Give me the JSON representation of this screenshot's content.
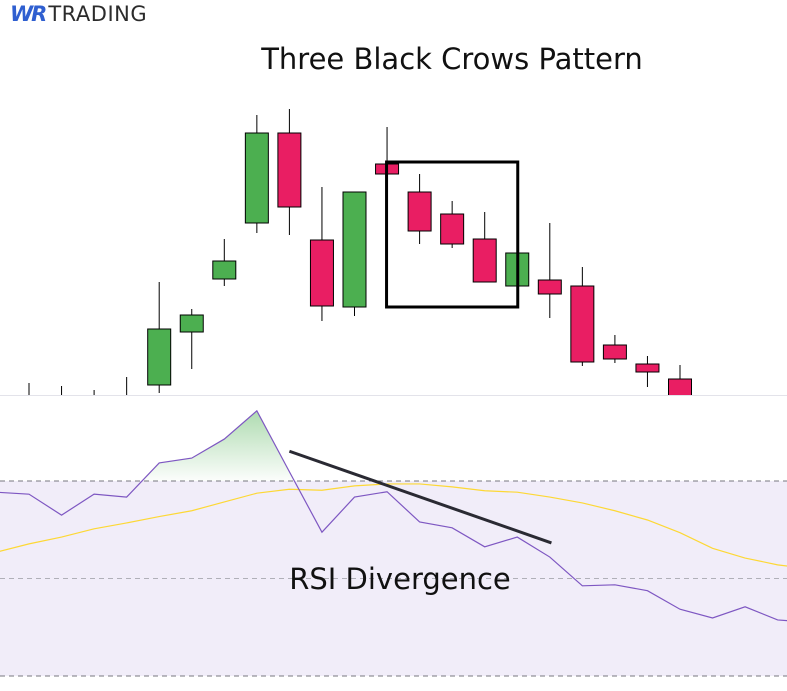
{
  "logo": {
    "mark": "WR",
    "word": "TRADING"
  },
  "chart_data": [
    {
      "type": "candlestick",
      "title": "Three Black Crows Pattern",
      "price_note": "no price axis shown; values in relative price units",
      "colors": {
        "up": "#4caf50",
        "down": "#e91e63",
        "outline": "#000000"
      },
      "candles": [
        {
          "bar": 2,
          "open": null,
          "high": 1.7,
          "low": -2,
          "close": null
        },
        {
          "bar": 3,
          "open": null,
          "high": 1.4,
          "low": -2,
          "close": null
        },
        {
          "bar": 4,
          "open": null,
          "high": 1.0,
          "low": -2,
          "close": null
        },
        {
          "bar": 5,
          "open": null,
          "high": 2.3,
          "low": -2,
          "close": null
        },
        {
          "bar": 6,
          "open": 1.5,
          "high": 11.8,
          "low": 0.7,
          "close": 7.1
        },
        {
          "bar": 7,
          "open": 6.8,
          "high": 9.1,
          "low": 3.1,
          "close": 8.5
        },
        {
          "bar": 8,
          "open": 12.1,
          "high": 16.1,
          "low": 11.4,
          "close": 13.9
        },
        {
          "bar": 9,
          "open": 17.7,
          "high": 28.5,
          "low": 16.7,
          "close": 26.7
        },
        {
          "bar": 10,
          "open": 26.7,
          "high": 29.1,
          "low": 16.5,
          "close": 19.3
        },
        {
          "bar": 11,
          "open": 16.0,
          "high": 21.3,
          "low": 7.9,
          "close": 9.4
        },
        {
          "bar": 12,
          "open": 9.3,
          "high": 20.8,
          "low": 8.4,
          "close": 20.8
        },
        {
          "bar": 13,
          "open": 23.6,
          "high": 27.3,
          "low": 22.6,
          "close": 22.6
        },
        {
          "bar": 14,
          "open": 20.8,
          "high": 22.6,
          "low": 15.6,
          "close": 16.9
        },
        {
          "bar": 15,
          "open": 18.6,
          "high": 19.9,
          "low": 15.2,
          "close": 15.6
        },
        {
          "bar": 16,
          "open": 16.1,
          "high": 18.8,
          "low": 11.8,
          "close": 11.8
        },
        {
          "bar": 17,
          "open": 11.4,
          "high": 14.7,
          "low": 11.4,
          "close": 14.7
        },
        {
          "bar": 18,
          "open": 12.0,
          "high": 17.7,
          "low": 8.2,
          "close": 10.6
        },
        {
          "bar": 19,
          "open": 11.4,
          "high": 13.3,
          "low": 3.4,
          "close": 3.8
        },
        {
          "bar": 20,
          "open": 5.5,
          "high": 6.5,
          "low": 3.7,
          "close": 4.1
        },
        {
          "bar": 21,
          "open": 3.6,
          "high": 4.4,
          "low": 1.3,
          "close": 2.8
        },
        {
          "bar": 22,
          "open": 2.1,
          "high": 3.5,
          "low": -1,
          "close": -1
        }
      ],
      "highlight_box": {
        "from_bar": 13,
        "to_bar": 17,
        "top": 23.8,
        "bottom": 9.3
      }
    },
    {
      "type": "line",
      "label": "RSI Divergence",
      "ylim": [
        18,
        100
      ],
      "levels": [
        70,
        50,
        30
      ],
      "colors": {
        "rsi": "#7e57c2",
        "ma": "#fdd835",
        "band": "#f1edf9",
        "overbought_fill": "#4caf50",
        "trendline": "#2a2a33"
      },
      "bars": [
        1,
        2,
        3,
        4,
        5,
        6,
        7,
        8,
        9,
        10,
        11,
        12,
        13,
        14,
        15,
        16,
        17,
        18,
        19,
        20,
        21,
        22,
        23,
        24,
        25,
        26
      ],
      "series": [
        {
          "key": "rsi",
          "values": [
            67.7,
            67.3,
            63.0,
            67.3,
            66.7,
            73.7,
            74.7,
            78.6,
            84.4,
            71.9,
            59.5,
            66.7,
            67.8,
            61.6,
            60.4,
            56.5,
            58.5,
            54.4,
            48.5,
            48.7,
            47.5,
            43.7,
            41.9,
            44.2,
            41.5,
            41.0
          ]
        },
        {
          "key": "ma",
          "values": [
            55.4,
            57.1,
            58.5,
            60.2,
            61.4,
            62.7,
            63.9,
            65.7,
            67.5,
            68.3,
            68.1,
            69.0,
            69.4,
            69.4,
            68.8,
            68.0,
            67.7,
            66.7,
            65.5,
            63.9,
            62.0,
            59.4,
            56.2,
            54.2,
            52.8,
            52.0
          ]
        }
      ],
      "trendline": {
        "from": {
          "bar": 10,
          "value": 76.1
        },
        "to": {
          "bar": 18.05,
          "value": 57.3
        }
      }
    }
  ]
}
